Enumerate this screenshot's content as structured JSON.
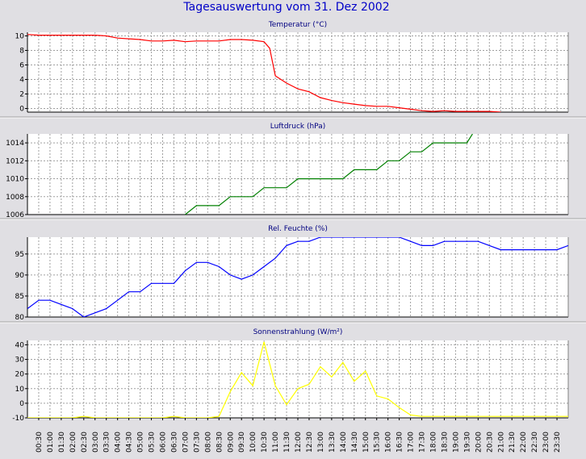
{
  "title": "Tagesauswertung vom 31. Dez 2002",
  "colors": {
    "background": "#e0dfe3",
    "plot_background": "#ffffff",
    "grid": "#a0a0a0",
    "axis": "#000000",
    "title_text": "#0000c8",
    "temperature": "#ff0000",
    "pressure": "#008000",
    "humidity": "#0000ff",
    "radiation": "#ffff00"
  },
  "chart_data": [
    {
      "type": "line",
      "title": "Temperatur (°C)",
      "x": [
        "00:00",
        "00:30",
        "01:00",
        "01:30",
        "02:00",
        "02:30",
        "03:00",
        "03:30",
        "04:00",
        "04:30",
        "05:00",
        "05:30",
        "06:00",
        "06:30",
        "07:00",
        "07:30",
        "08:00",
        "08:30",
        "09:00",
        "09:30",
        "10:00",
        "10:30",
        "10:45",
        "11:00",
        "11:30",
        "12:00",
        "12:30",
        "13:00",
        "13:30",
        "14:00",
        "14:30",
        "15:00",
        "15:30",
        "16:00",
        "16:30",
        "17:00",
        "17:30",
        "18:00",
        "18:30",
        "19:00",
        "19:30",
        "20:00",
        "20:30",
        "21:00"
      ],
      "series": [
        {
          "values": [
            10.2,
            10.1,
            10.1,
            10.1,
            10.1,
            10.1,
            10.1,
            10.0,
            9.7,
            9.6,
            9.5,
            9.3,
            9.3,
            9.4,
            9.2,
            9.3,
            9.3,
            9.3,
            9.5,
            9.5,
            9.4,
            9.2,
            8.3,
            4.5,
            3.5,
            2.7,
            2.3,
            1.5,
            1.1,
            0.8,
            0.6,
            0.4,
            0.3,
            0.3,
            0.1,
            -0.1,
            -0.3,
            -0.4,
            -0.3,
            -0.4,
            -0.4,
            -0.4,
            -0.4,
            -0.5
          ]
        }
      ],
      "yticks": [
        0,
        2,
        4,
        6,
        8,
        10
      ],
      "ylim": [
        -0.5,
        10.5
      ],
      "grid": true
    },
    {
      "type": "line",
      "title": "Luftdruck (hPa)",
      "x": [
        "07:00",
        "07:30",
        "08:00",
        "08:30",
        "09:00",
        "09:30",
        "10:00",
        "10:30",
        "11:00",
        "11:30",
        "12:00",
        "12:30",
        "13:00",
        "13:30",
        "14:00",
        "14:30",
        "15:00",
        "15:30",
        "16:00",
        "16:30",
        "17:00",
        "17:30",
        "18:00",
        "18:30",
        "19:00",
        "19:30"
      ],
      "series": [
        {
          "values": [
            1006,
            1007,
            1007,
            1007,
            1008,
            1008,
            1008,
            1009,
            1009,
            1009,
            1010,
            1010,
            1010,
            1010,
            1010,
            1011,
            1011,
            1011,
            1012,
            1012,
            1013,
            1013,
            1014,
            1014,
            1014,
            1014
          ]
        }
      ],
      "x_extra": {
        "19:30": 1014,
        "19:45": 1015
      },
      "yticks": [
        1006,
        1008,
        1010,
        1012,
        1014
      ],
      "ylim": [
        1006,
        1015
      ],
      "grid": true
    },
    {
      "type": "line",
      "title": "Rel. Feuchte (%)",
      "x": [
        "00:00",
        "00:30",
        "01:00",
        "01:30",
        "02:00",
        "02:30",
        "03:00",
        "03:30",
        "04:00",
        "04:30",
        "05:00",
        "05:30",
        "06:00",
        "06:30",
        "07:00",
        "07:30",
        "08:00",
        "08:30",
        "09:00",
        "09:30",
        "10:00",
        "10:30",
        "11:00",
        "11:30",
        "12:00",
        "12:30",
        "13:00",
        "16:30",
        "17:00",
        "17:30",
        "18:00",
        "18:30",
        "19:00",
        "19:30",
        "20:00",
        "20:30",
        "21:00",
        "21:30",
        "22:00",
        "22:30",
        "23:00",
        "23:30",
        "24:00"
      ],
      "series": [
        {
          "values": [
            82,
            84,
            84,
            83,
            82,
            80,
            81,
            82,
            84,
            86,
            86,
            88,
            88,
            88,
            91,
            93,
            93,
            92,
            90,
            89,
            90,
            92,
            94,
            97,
            98,
            98,
            99,
            99,
            98,
            97,
            97,
            98,
            98,
            98,
            98,
            97,
            96,
            96,
            96,
            96,
            96,
            96,
            97
          ]
        }
      ],
      "yticks": [
        80,
        85,
        90,
        95
      ],
      "ylim": [
        80,
        99
      ],
      "grid": true
    },
    {
      "type": "line",
      "title": "Sonnenstrahlung (W/m²)",
      "x": [
        "00:00",
        "00:30",
        "01:00",
        "01:30",
        "02:00",
        "02:30",
        "03:00",
        "03:30",
        "04:00",
        "04:30",
        "05:00",
        "05:30",
        "06:00",
        "06:30",
        "07:00",
        "07:30",
        "08:00",
        "08:30",
        "09:00",
        "09:30",
        "10:00",
        "10:30",
        "11:00",
        "11:30",
        "12:00",
        "12:30",
        "13:00",
        "13:30",
        "14:00",
        "14:30",
        "15:00",
        "15:30",
        "16:00",
        "16:30",
        "17:00",
        "17:30",
        "18:00",
        "18:30",
        "19:00",
        "19:30",
        "20:00",
        "20:30",
        "21:00",
        "21:30",
        "22:00",
        "22:30",
        "23:00",
        "23:30",
        "24:00"
      ],
      "series": [
        {
          "values": [
            -10,
            -10,
            -10,
            -10,
            -10,
            -9,
            -10,
            -10,
            -10,
            -10,
            -10,
            -10,
            -10,
            -9,
            -10,
            -10,
            -10,
            -9,
            8,
            21,
            12,
            42,
            12,
            -1,
            10,
            13,
            25,
            18,
            28,
            15,
            22,
            5,
            3,
            -3,
            -8,
            -9,
            -9,
            -9,
            -9,
            -9,
            -9,
            -9,
            -9,
            -9,
            -9,
            -9,
            -9,
            -9,
            -9
          ]
        }
      ],
      "yticks": [
        -10,
        0,
        10,
        20,
        30,
        40
      ],
      "ylim": [
        -10,
        43
      ],
      "grid": true
    }
  ],
  "x_axis": {
    "tick_labels": [
      "00:30",
      "01:00",
      "01:30",
      "02:00",
      "02:30",
      "03:00",
      "03:30",
      "04:00",
      "04:30",
      "05:00",
      "05:30",
      "06:00",
      "06:30",
      "07:00",
      "07:30",
      "08:00",
      "08:30",
      "09:00",
      "09:30",
      "10:00",
      "10:30",
      "11:00",
      "11:30",
      "12:00",
      "12:30",
      "13:00",
      "13:30",
      "14:00",
      "14:30",
      "15:00",
      "15:30",
      "16:00",
      "16:30",
      "17:00",
      "17:30",
      "18:00",
      "18:30",
      "19:00",
      "19:30",
      "20:00",
      "20:30",
      "21:00",
      "21:30",
      "22:00",
      "22:30",
      "23:00",
      "23:30"
    ]
  }
}
